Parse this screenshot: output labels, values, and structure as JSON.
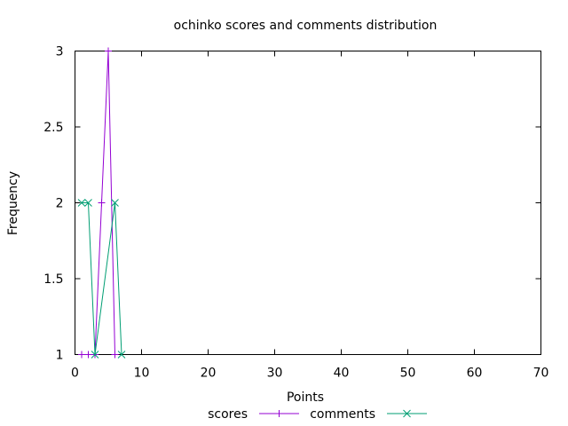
{
  "chart_data": {
    "type": "line",
    "title": "ochinko scores and comments distribution",
    "xlabel": "Points",
    "ylabel": "Frequency",
    "xlim": [
      0,
      70
    ],
    "ylim": [
      1,
      3
    ],
    "xticks": [
      "0",
      "10",
      "20",
      "30",
      "40",
      "50",
      "60",
      "70"
    ],
    "yticks": [
      "1",
      "1.5",
      "2",
      "2.5",
      "3"
    ],
    "grid": false,
    "legend_position": "bottom-center",
    "series": [
      {
        "name": "scores",
        "color": "#9400d3",
        "marker": "plus",
        "points": [
          [
            1,
            1
          ],
          [
            2,
            1
          ],
          [
            3,
            1
          ],
          [
            4,
            2
          ],
          [
            5,
            3
          ],
          [
            6,
            1
          ]
        ]
      },
      {
        "name": "comments",
        "color": "#009e73",
        "marker": "cross",
        "points": [
          [
            1,
            2
          ],
          [
            2,
            2
          ],
          [
            3,
            1
          ],
          [
            6,
            2
          ],
          [
            7,
            1
          ]
        ]
      }
    ]
  }
}
